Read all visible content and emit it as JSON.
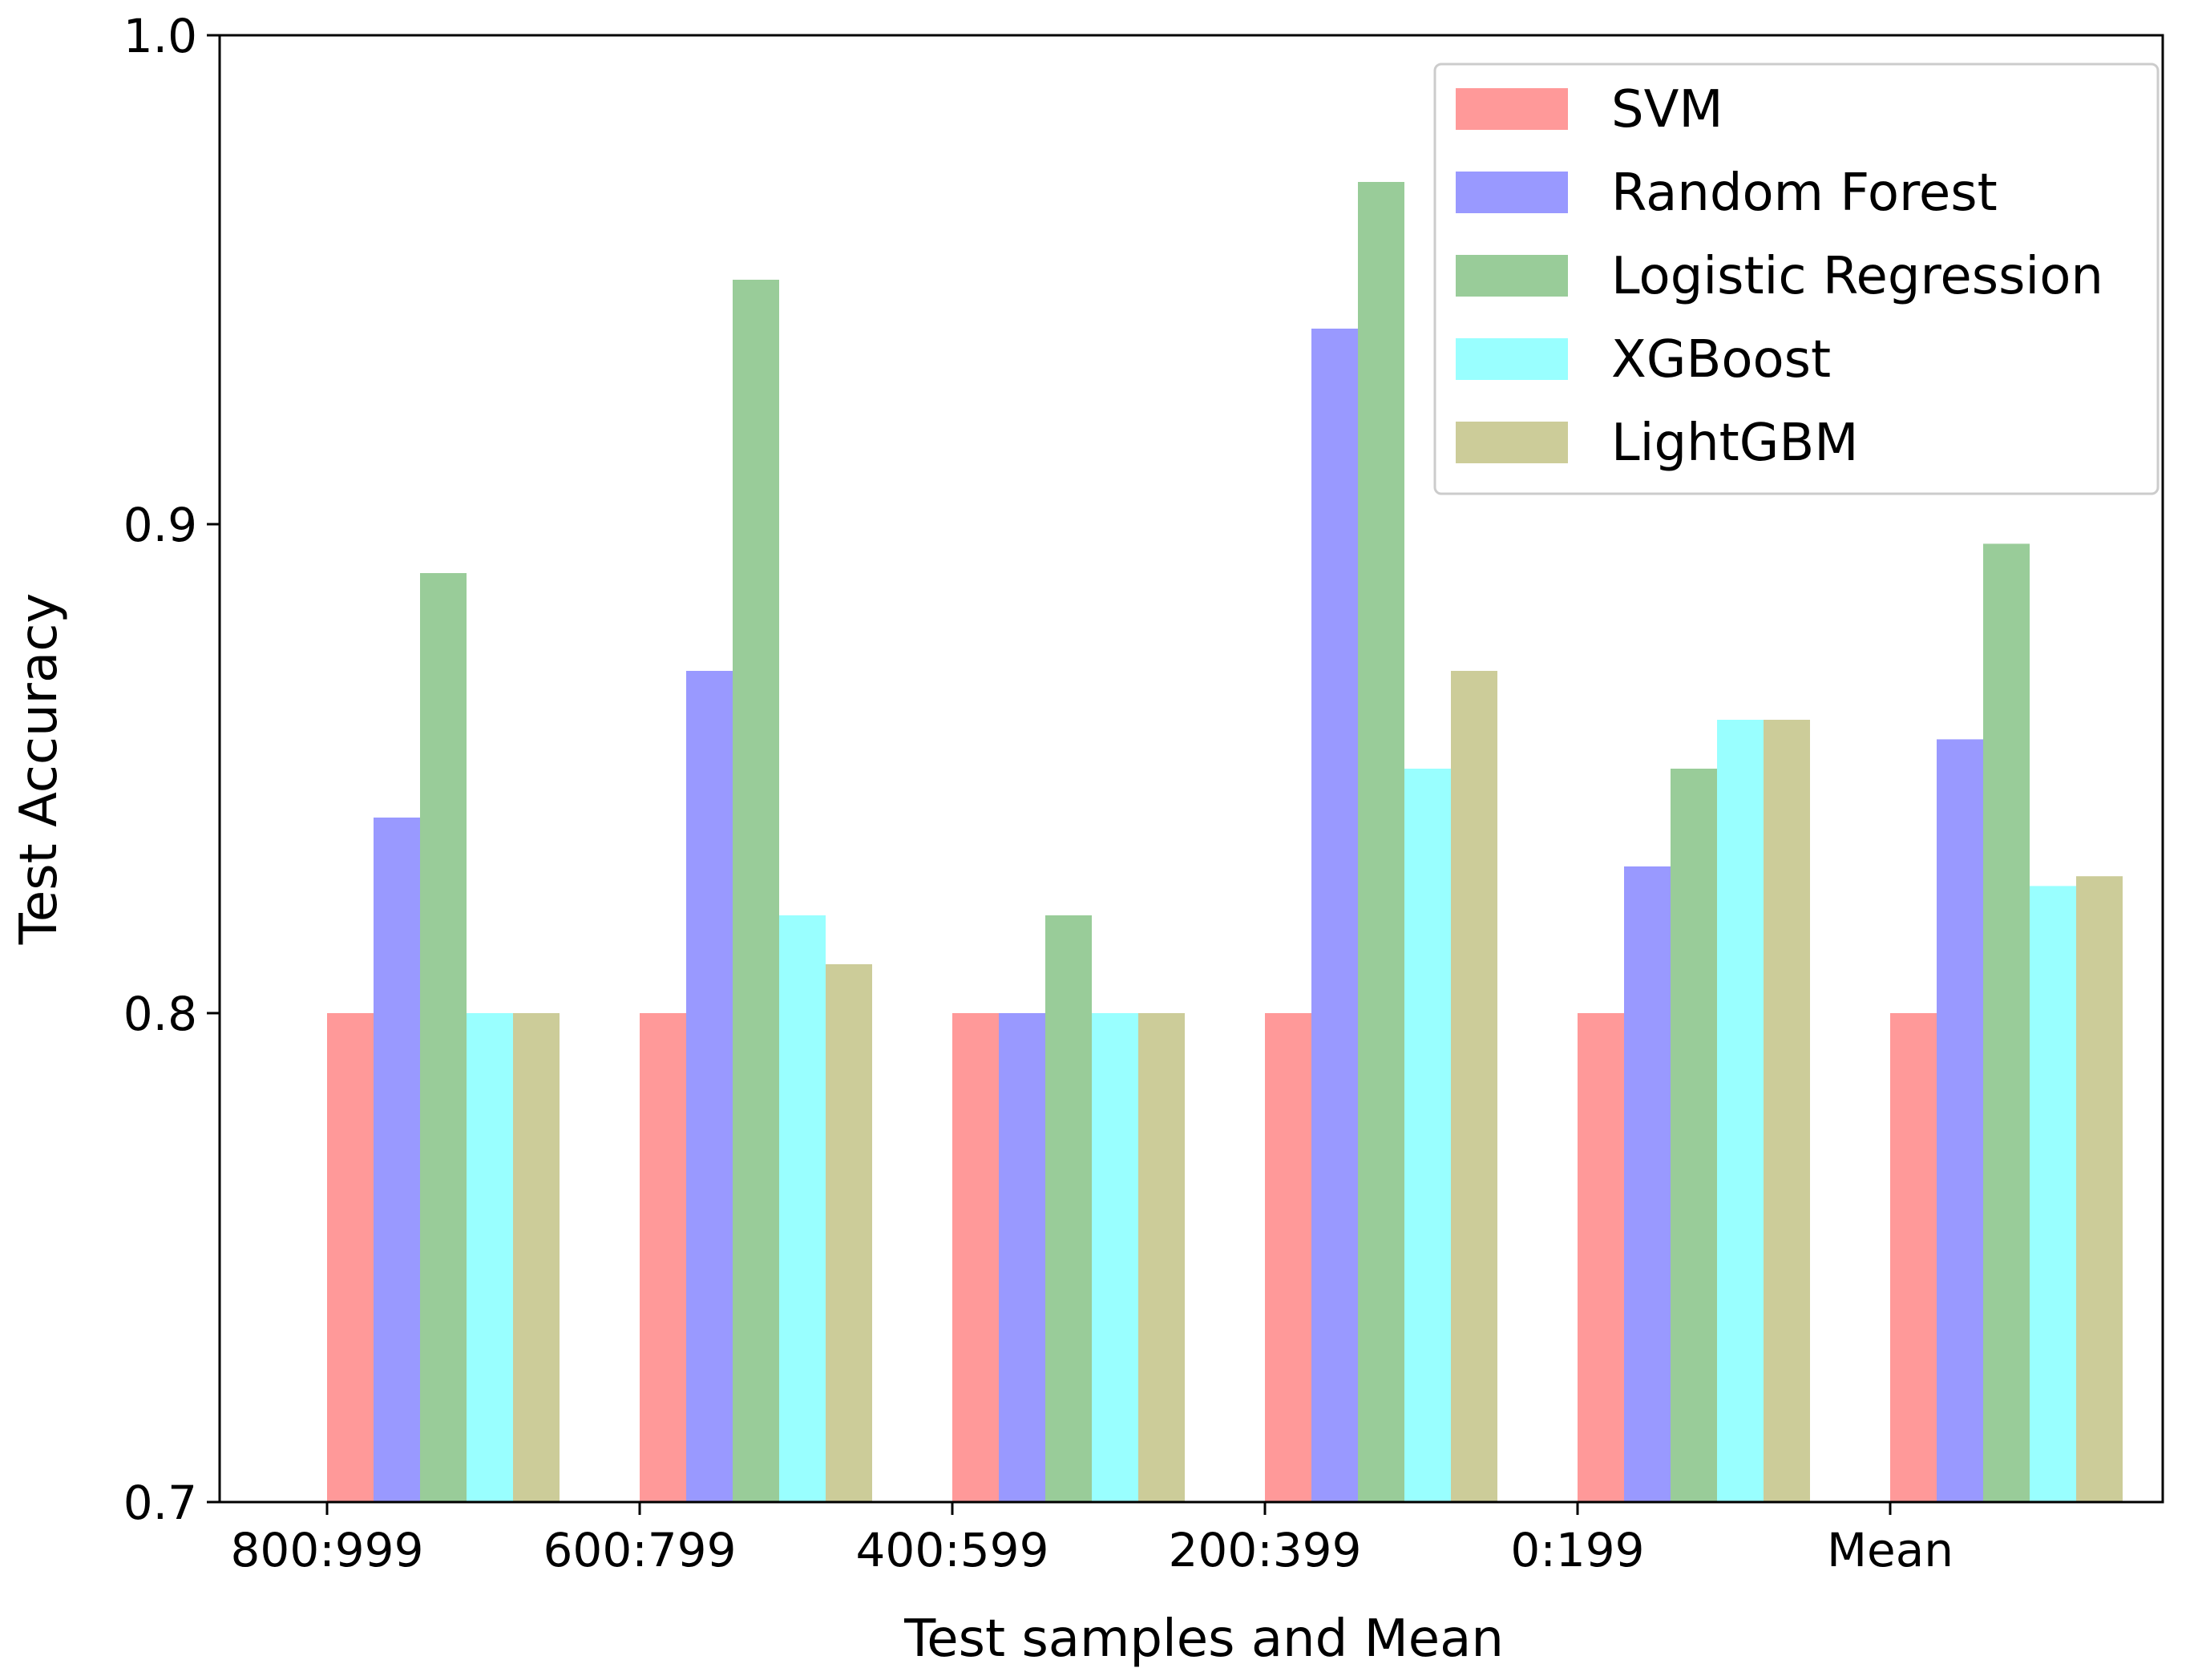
{
  "chart_data": {
    "type": "bar",
    "title": "",
    "xlabel": "Test samples and Mean",
    "ylabel": "Test Accuracy",
    "ylim": [
      0.7,
      1.0
    ],
    "yticks": [
      "0.7",
      "0.8",
      "0.9",
      "1.0"
    ],
    "categories": [
      "800:999",
      "600:799",
      "400:599",
      "200:399",
      "0:199",
      "Mean"
    ],
    "legend_position": "top-right",
    "series": [
      {
        "name": "SVM",
        "color": "#ff9999",
        "values": [
          0.8,
          0.8,
          0.8,
          0.8,
          0.8,
          0.8
        ]
      },
      {
        "name": "Random Forest",
        "color": "#9999ff",
        "values": [
          0.84,
          0.87,
          0.8,
          0.94,
          0.83,
          0.856
        ]
      },
      {
        "name": "Logistic Regression",
        "color": "#99cc99",
        "values": [
          0.89,
          0.95,
          0.82,
          0.97,
          0.85,
          0.896
        ]
      },
      {
        "name": "XGBoost",
        "color": "#99ffff",
        "values": [
          0.8,
          0.82,
          0.8,
          0.85,
          0.86,
          0.826
        ]
      },
      {
        "name": "LightGBM",
        "color": "#cccc99",
        "values": [
          0.8,
          0.81,
          0.8,
          0.87,
          0.86,
          0.828
        ]
      }
    ]
  }
}
